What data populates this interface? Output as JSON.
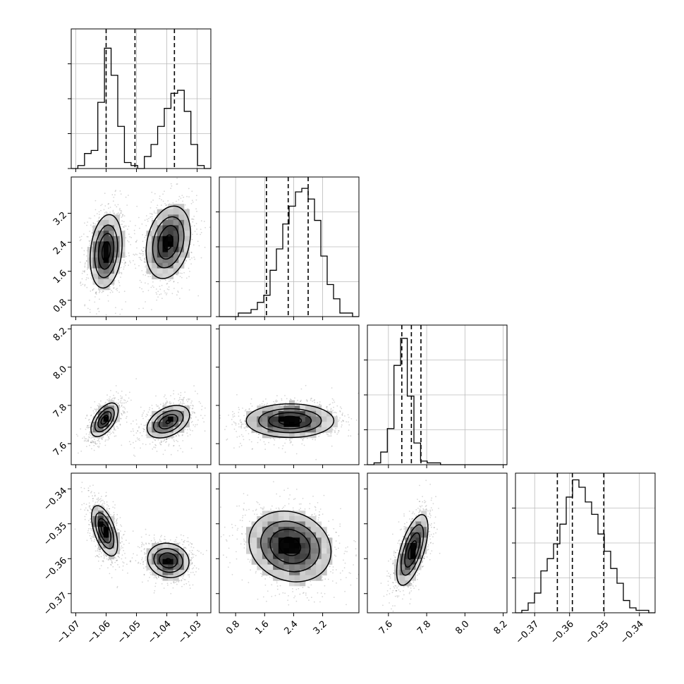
{
  "chart_data": {
    "type": "scatter",
    "kind": "corner",
    "grid": true,
    "params": [
      {
        "range": [
          -1.0715,
          -1.0255
        ],
        "ticks": [
          -1.07,
          -1.06,
          -1.05,
          -1.04,
          -1.03
        ],
        "tick_labels": [
          "−1.07",
          "−1.06",
          "−1.05",
          "−1.04",
          "−1.03"
        ],
        "quantiles": [
          -1.06,
          -1.0505,
          -1.0375
        ]
      },
      {
        "range": [
          0.35,
          4.2
        ],
        "ticks": [
          0.8,
          1.6,
          2.4,
          3.2
        ],
        "tick_labels": [
          "0.8",
          "1.6",
          "2.4",
          "3.2"
        ],
        "quantiles": [
          1.65,
          2.25,
          2.8
        ]
      },
      {
        "range": [
          7.49,
          8.22
        ],
        "ticks": [
          7.6,
          7.8,
          8.0,
          8.2
        ],
        "tick_labels": [
          "7.6",
          "7.8",
          "8.0",
          "8.2"
        ],
        "quantiles": [
          7.67,
          7.72,
          7.77
        ]
      },
      {
        "range": [
          -0.3755,
          -0.3355
        ],
        "ticks": [
          -0.37,
          -0.36,
          -0.35,
          -0.34
        ],
        "tick_labels": [
          "−0.37",
          "−0.36",
          "−0.35",
          "−0.34"
        ],
        "quantiles": [
          -0.3635,
          -0.3592,
          -0.3502
        ]
      }
    ],
    "histograms": [
      {
        "max": 45,
        "counts": [
          0,
          1,
          5,
          6,
          22,
          40,
          31,
          14,
          2,
          1,
          0,
          4,
          8,
          14,
          20,
          25,
          26,
          19,
          8,
          1,
          0
        ]
      },
      {
        "max": 38,
        "counts": [
          0,
          0,
          0,
          1,
          1,
          2,
          4,
          6,
          13,
          19,
          26,
          31,
          35,
          36,
          33,
          27,
          17,
          9,
          5,
          1,
          1,
          0
        ]
      },
      {
        "max": 75,
        "counts": [
          0,
          1,
          7,
          20,
          55,
          70,
          38,
          12,
          2,
          1,
          1,
          0,
          0,
          0,
          0,
          0,
          0,
          0,
          0,
          0,
          0
        ]
      },
      {
        "max": 55,
        "counts": [
          0,
          1,
          4,
          8,
          17,
          22,
          28,
          36,
          47,
          54,
          51,
          45,
          40,
          32,
          25,
          18,
          12,
          5,
          2,
          1,
          1,
          0
        ]
      }
    ],
    "blobs": [
      {
        "xi": 0,
        "yi": 1,
        "modes": [
          {
            "cx": -1.06,
            "cy": 2.15,
            "sx": 0.0027,
            "sy": 0.52,
            "w": 1.0,
            "rho": 0.2
          },
          {
            "cx": -1.0395,
            "cy": 2.4,
            "sx": 0.0038,
            "sy": 0.52,
            "w": 0.95,
            "rho": 0.25
          }
        ]
      },
      {
        "xi": 0,
        "yi": 2,
        "modes": [
          {
            "cx": -1.0605,
            "cy": 7.725,
            "sx": 0.0023,
            "sy": 0.045,
            "w": 1.0,
            "rho": 0.55
          },
          {
            "cx": -1.0395,
            "cy": 7.715,
            "sx": 0.0037,
            "sy": 0.045,
            "w": 0.9,
            "rho": 0.4
          }
        ]
      },
      {
        "xi": 1,
        "yi": 2,
        "modes": [
          {
            "cx": 2.3,
            "cy": 7.72,
            "sx": 0.62,
            "sy": 0.045,
            "w": 1.0,
            "rho": 0.0
          }
        ]
      },
      {
        "xi": 0,
        "yi": 3,
        "modes": [
          {
            "cx": -1.0605,
            "cy": -0.352,
            "sx": 0.0022,
            "sy": 0.0037,
            "w": 1.0,
            "rho": -0.55
          },
          {
            "cx": -1.0395,
            "cy": -0.3605,
            "sx": 0.0036,
            "sy": 0.0026,
            "w": 0.9,
            "rho": -0.1
          }
        ]
      },
      {
        "xi": 1,
        "yi": 3,
        "modes": [
          {
            "cx": 2.3,
            "cy": -0.3565,
            "sx": 0.58,
            "sy": 0.0052,
            "w": 1.0,
            "rho": -0.15
          }
        ]
      },
      {
        "xi": 2,
        "yi": 3,
        "modes": [
          {
            "cx": 7.725,
            "cy": -0.3575,
            "sx": 0.042,
            "sy": 0.0052,
            "w": 1.0,
            "rho": 0.62
          }
        ]
      }
    ]
  }
}
